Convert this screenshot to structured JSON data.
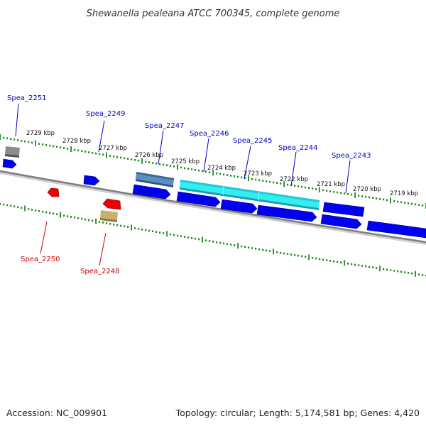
{
  "header": {
    "title": "Shewanella pealeana ATCC 700345, complete genome"
  },
  "footer": {
    "accession": "Accession: NC_009901",
    "topology": "Topology: circular; Length: 5,174,581 bp; Genes: 4,420"
  },
  "scale_labels": [
    "2729 kbp",
    "2728 kbp",
    "2727 kbp",
    "2726 kbp",
    "2725 kbp",
    "2724 kbp",
    "2723 kbp",
    "2722 kbp",
    "2721 kbp",
    "2720 kbp",
    "2719 kbp"
  ],
  "gene_labels": {
    "top": [
      "Spea_2251",
      "Spea_2249",
      "Spea_2247",
      "Spea_2246",
      "Spea_2245",
      "Spea_2244",
      "Spea_2243"
    ],
    "bottom": [
      "Spea_2250",
      "Spea_2248"
    ]
  },
  "colors": {
    "top_label": "#0000cc",
    "bottom_label": "#cc0000",
    "cds_forward": "#0000ee",
    "cds_reverse": "#ee0000",
    "tick": "#228822",
    "backbone": "#888888",
    "gray_feature": "#808080",
    "steelblue_feature": "#4a7fb8",
    "cyan_feature": "#22e6e6",
    "khaki_feature": "#c8b070"
  }
}
